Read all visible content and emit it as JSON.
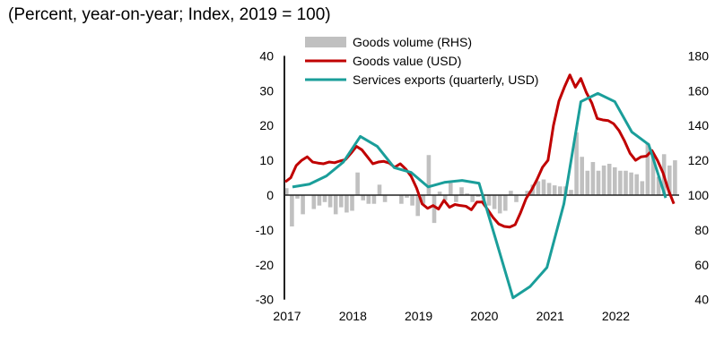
{
  "subtitle": "(Percent, year-on-year; Index, 2019 = 100)",
  "chart_data": {
    "type": "bar+line",
    "title": "",
    "subtitle": "(Percent, year-on-year; Index, 2019 = 100)",
    "legend_position": "top-center",
    "grid": false,
    "x_ticks": [
      "2017",
      "2018",
      "2019",
      "2020",
      "2021",
      "2022"
    ],
    "y_left": {
      "ylim": [
        -30,
        40
      ],
      "ticks": [
        "40",
        "30",
        "20",
        "10",
        "0",
        "-10",
        "-20",
        "-30"
      ]
    },
    "y_right": {
      "ylim": [
        40,
        180
      ],
      "ticks": [
        "180",
        "160",
        "140",
        "120",
        "100",
        "80",
        "60",
        "40"
      ]
    },
    "colors": {
      "goods_volume": "#c0c0c0",
      "goods_value": "#c00000",
      "services": "#1a9e9a",
      "axis": "#222222"
    },
    "series": [
      {
        "name": "Goods volume (RHS)",
        "type": "bar",
        "axis": "right",
        "baseline": 100,
        "frequency": "monthly",
        "start": "2017-01",
        "values": [
          104,
          82,
          98,
          89,
          100,
          92,
          94,
          96,
          93,
          89,
          93,
          90,
          91,
          113,
          97,
          95,
          95,
          106,
          96,
          100,
          100,
          95,
          98.5,
          94,
          88,
          95,
          123,
          84,
          102,
          97,
          107,
          96,
          104.5,
          101,
          96,
          99,
          96.5,
          94,
          92,
          89.5,
          91,
          102.5,
          96,
          99.6,
          102.5,
          106,
          108,
          109,
          107,
          105.6,
          105,
          105,
          103,
          136,
          122,
          114,
          119,
          114,
          117,
          118,
          116,
          114,
          114,
          113,
          112,
          108,
          130,
          123,
          110.5,
          123.5,
          117,
          120
        ]
      },
      {
        "name": "Goods value (USD)",
        "type": "line",
        "axis": "left",
        "frequency": "monthly",
        "start": "2017-01",
        "values": [
          3.8,
          5,
          8.5,
          10,
          11,
          9.5,
          9.2,
          9,
          9.5,
          9.3,
          9.8,
          10.2,
          12,
          14,
          13,
          11,
          9,
          9.5,
          9.7,
          9.2,
          8,
          9,
          7.5,
          5.4,
          2,
          -2.5,
          -3.8,
          -3,
          -4,
          -1.5,
          -3.5,
          -2.7,
          -3,
          -3.2,
          -4.2,
          -2,
          -2,
          -4.2,
          -6.5,
          -8.3,
          -9,
          -9.2,
          -8.5,
          -5,
          -1,
          1.5,
          4.5,
          8,
          10,
          20,
          27,
          31,
          34.5,
          31,
          33.5,
          29.5,
          26.5,
          22,
          21.6,
          21.4,
          20.5,
          18.5,
          15.5,
          12,
          10,
          11,
          11.2,
          12.8,
          10,
          6.5,
          1.5,
          -2.5
        ]
      },
      {
        "name": "Services exports (quarterly, USD)",
        "type": "line",
        "axis": "right",
        "frequency": "quarterly",
        "start": "2017Q1",
        "values": [
          104.7,
          106.3,
          111,
          119,
          133.7,
          128,
          115.8,
          113,
          104.7,
          107.4,
          108.4,
          106.8,
          74,
          41,
          47.4,
          58.4,
          95,
          153.7,
          158.4,
          153.7,
          136.3,
          129,
          98.4
        ]
      }
    ]
  }
}
